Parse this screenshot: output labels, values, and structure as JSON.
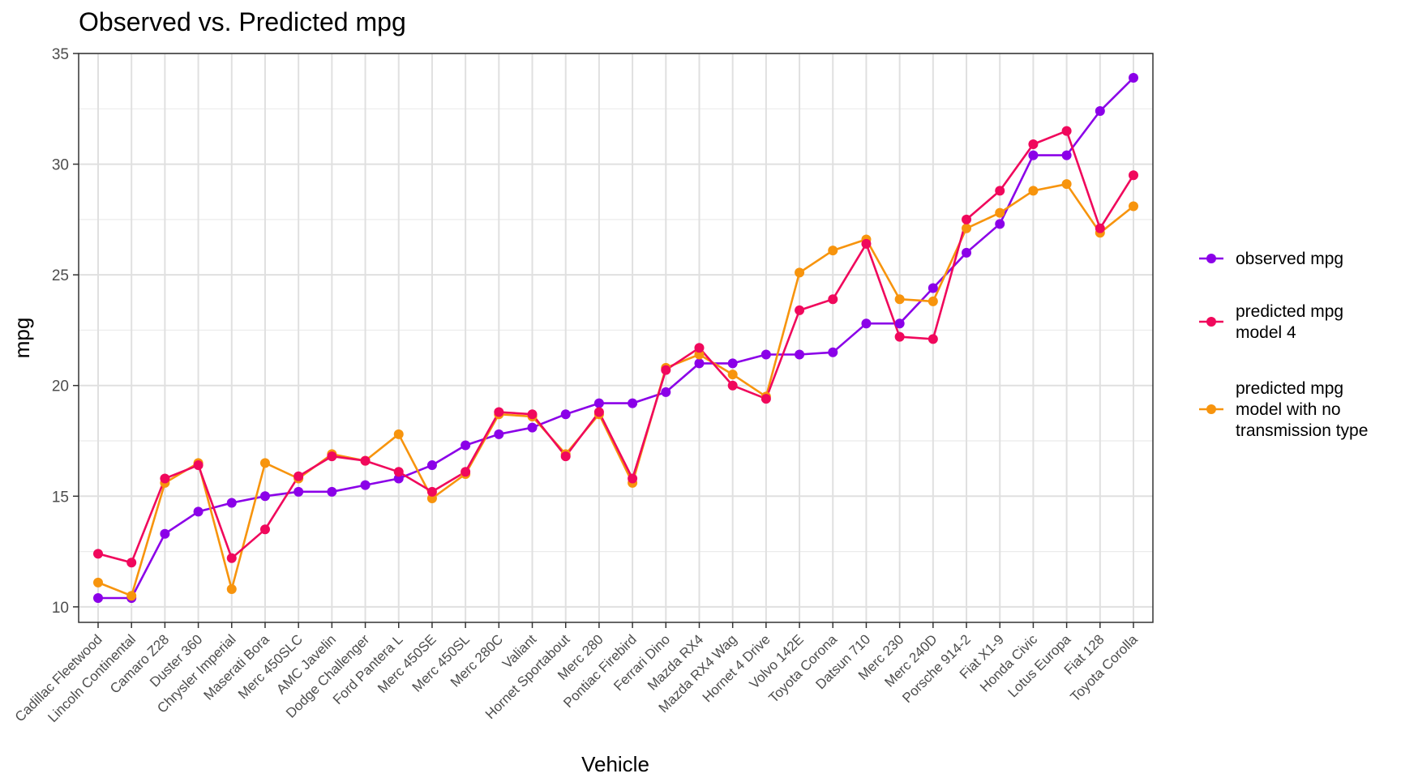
{
  "chart_data": {
    "type": "line",
    "title": "Observed vs. Predicted mpg",
    "xlabel": "Vehicle",
    "ylabel": "mpg",
    "ylim": [
      9.3,
      35
    ],
    "yticks": [
      10,
      15,
      20,
      25,
      30,
      35
    ],
    "grid": true,
    "legend_position": "right",
    "categories": [
      "Cadillac Fleetwood",
      "Lincoln Continental",
      "Camaro Z28",
      "Duster 360",
      "Chrysler Imperial",
      "Maserati Bora",
      "Merc 450SLC",
      "AMC Javelin",
      "Dodge Challenger",
      "Ford Pantera L",
      "Merc 450SE",
      "Merc 450SL",
      "Merc 280C",
      "Valiant",
      "Hornet Sportabout",
      "Merc 280",
      "Pontiac Firebird",
      "Ferrari Dino",
      "Mazda RX4",
      "Mazda RX4 Wag",
      "Hornet 4 Drive",
      "Volvo 142E",
      "Toyota Corona",
      "Datsun 710",
      "Merc 230",
      "Merc 240D",
      "Porsche 914-2",
      "Fiat X1-9",
      "Honda Civic",
      "Lotus Europa",
      "Fiat 128",
      "Toyota Corolla"
    ],
    "series": [
      {
        "name": "observed mpg",
        "color": "#8B00E8",
        "values": [
          10.4,
          10.4,
          13.3,
          14.3,
          14.7,
          15.0,
          15.2,
          15.2,
          15.5,
          15.8,
          16.4,
          17.3,
          17.8,
          18.1,
          18.7,
          19.2,
          19.2,
          19.7,
          21.0,
          21.0,
          21.4,
          21.4,
          21.5,
          22.8,
          22.8,
          24.4,
          26.0,
          27.3,
          30.4,
          30.4,
          32.4,
          33.9
        ]
      },
      {
        "name": "predicted mpg model 4",
        "color": "#F0085C",
        "values": [
          12.4,
          12.0,
          15.8,
          16.4,
          12.2,
          13.5,
          15.9,
          16.8,
          16.6,
          16.1,
          15.2,
          16.1,
          18.8,
          18.7,
          16.8,
          18.8,
          15.8,
          20.7,
          21.7,
          20.0,
          19.4,
          23.4,
          23.9,
          26.4,
          22.2,
          22.1,
          27.5,
          28.8,
          30.9,
          31.5,
          27.1,
          29.5
        ]
      },
      {
        "name": "predicted mpg model with no transmission type",
        "color": "#F7940D",
        "values": [
          11.1,
          10.5,
          15.6,
          16.5,
          10.8,
          16.5,
          15.8,
          16.9,
          16.6,
          17.8,
          14.9,
          16.0,
          18.7,
          18.6,
          16.9,
          18.7,
          15.6,
          20.8,
          21.4,
          20.5,
          19.5,
          25.1,
          26.1,
          26.6,
          23.9,
          23.8,
          27.1,
          27.8,
          28.8,
          29.1,
          26.9,
          28.1
        ]
      }
    ]
  },
  "legend": {
    "items": [
      {
        "lines": [
          "observed mpg"
        ]
      },
      {
        "lines": [
          "predicted mpg",
          "model 4"
        ]
      },
      {
        "lines": [
          "predicted mpg",
          "model with no",
          "transmission type"
        ]
      }
    ]
  }
}
